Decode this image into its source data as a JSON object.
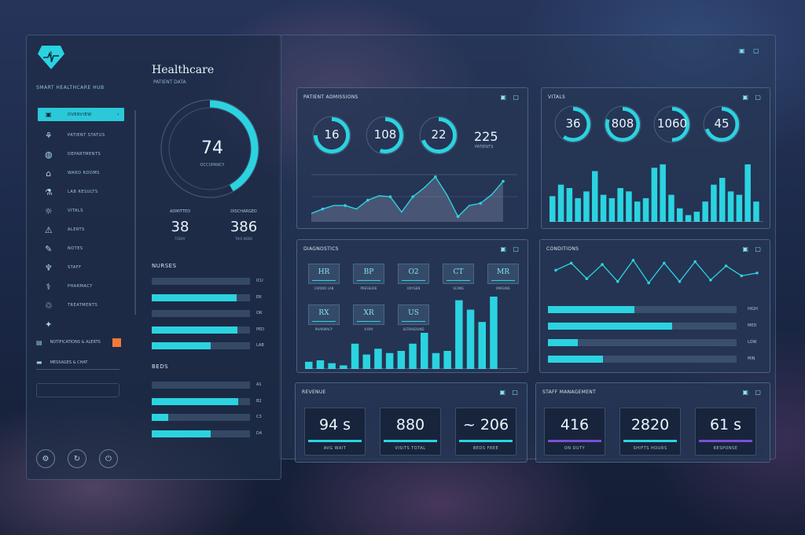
{
  "app": {
    "title": "Healthcare",
    "subtitle": "PATIENT DATA",
    "brand_sub": "SMART HEALTHCARE HUB",
    "top_icons": "▣ ▢"
  },
  "sidebar": {
    "nav": [
      {
        "icon": "▣",
        "icon_name": "grid-icon",
        "label": "OVERVIEW",
        "chevron": "›",
        "active": true
      },
      {
        "icon": "⚘",
        "icon_name": "flower-icon",
        "label": "PATIENT STATUS"
      },
      {
        "icon": "◍",
        "icon_name": "globe-icon",
        "label": "DEPARTMENTS"
      },
      {
        "icon": "⌂",
        "icon_name": "home-icon",
        "label": "WARD ROOMS"
      },
      {
        "icon": "⚗",
        "icon_name": "lab-icon",
        "label": "LAB RESULTS"
      },
      {
        "icon": "☼",
        "icon_name": "sun-icon",
        "label": "VITALS"
      },
      {
        "icon": "⚠",
        "icon_name": "alert-icon",
        "label": "ALERTS"
      },
      {
        "icon": "✎",
        "icon_name": "pen-icon",
        "label": "NOTES"
      },
      {
        "icon": "♆",
        "icon_name": "staff-icon",
        "label": "STAFF"
      },
      {
        "icon": "⚕",
        "icon_name": "medical-icon",
        "label": "PHARMACY"
      },
      {
        "icon": "♲",
        "icon_name": "cycle-icon",
        "label": "TREATMENTS"
      },
      {
        "icon": "✦",
        "icon_name": "star-icon",
        "label": ""
      }
    ],
    "notifications": {
      "icon": "▤",
      "label": "NOTIFICATIONS & ALERTS"
    },
    "messages": {
      "icon": "▬",
      "label": "MESSAGES & CHAT"
    },
    "footer_icons": [
      "⚙",
      "↻",
      "⏻"
    ]
  },
  "ring": {
    "value": "74",
    "sub": "OCCUPANCY",
    "fraction": 0.42
  },
  "pairs": [
    {
      "caption": "ADMITTED",
      "value": "38",
      "foot": "TODAY"
    },
    {
      "caption": "DISCHARGED",
      "value": "386",
      "foot": "THIS WEEK"
    }
  ],
  "bars_top": {
    "title": "NURSES",
    "rows": [
      {
        "fraction": 0.0,
        "label": "ICU"
      },
      {
        "fraction": 0.86,
        "label": "ER"
      },
      {
        "fraction": 0.0,
        "label": "OR"
      },
      {
        "fraction": 0.87,
        "label": "PED"
      },
      {
        "fraction": 0.6,
        "label": "LAB"
      }
    ]
  },
  "bars_bottom": {
    "title": "BEDS",
    "rows": [
      {
        "fraction": 0.0,
        "label": "A1"
      },
      {
        "fraction": 0.88,
        "label": "B2"
      },
      {
        "fraction": 0.17,
        "label": "C3"
      },
      {
        "fraction": 0.6,
        "label": "D4"
      }
    ]
  },
  "card1": {
    "title": "PATIENT ADMISSIONS",
    "icons": "▣ ▢",
    "donuts": [
      {
        "value": "16",
        "fraction": 0.75
      },
      {
        "value": "108",
        "fraction": 0.55
      },
      {
        "value": "22",
        "fraction": 0.7
      }
    ],
    "plain_value": "225",
    "plain_sub": "PATIENTS",
    "line": [
      0.12,
      0.22,
      0.3,
      0.3,
      0.22,
      0.42,
      0.52,
      0.5,
      0.15,
      0.5,
      0.7,
      0.95,
      0.55,
      0.05,
      0.3,
      0.35,
      0.55,
      0.85
    ]
  },
  "card2": {
    "title": "VITALS",
    "icons": "▣ ▢",
    "donuts": [
      {
        "value": "36",
        "fraction": 0.6
      },
      {
        "value": "808",
        "fraction": 0.8
      },
      {
        "value": "1060",
        "fraction": 0.5
      },
      {
        "value": "45",
        "fraction": 0.7
      }
    ],
    "bars": [
      0.38,
      0.55,
      0.5,
      0.35,
      0.45,
      0.75,
      0.4,
      0.35,
      0.5,
      0.45,
      0.3,
      0.35,
      0.8,
      0.85,
      0.4,
      0.2,
      0.1,
      0.15,
      0.3,
      0.55,
      0.65,
      0.45,
      0.4,
      0.85,
      0.3
    ]
  },
  "card3": {
    "title": "DIAGNOSTICS",
    "icons": "▣ ▢",
    "minis": [
      {
        "text": "HR",
        "caption": "CARDIO LAB"
      },
      {
        "text": "BP",
        "caption": "PRESSURE"
      },
      {
        "text": "O2",
        "caption": "OXYGEN"
      },
      {
        "text": "CT",
        "caption": "SCANS"
      },
      {
        "text": "MR",
        "caption": "IMAGING"
      },
      {
        "text": "RX",
        "caption": "PHARMACY"
      },
      {
        "text": "XR",
        "caption": "X-RAY"
      },
      {
        "text": "US",
        "caption": "ULTRASOUND"
      }
    ],
    "bars": [
      0.1,
      0.12,
      0.08,
      0.05,
      0.35,
      0.2,
      0.28,
      0.22,
      0.25,
      0.35,
      0.5,
      0.22,
      0.25,
      0.95,
      0.82,
      0.65,
      1.0
    ]
  },
  "card4": {
    "title": "CONDITIONS",
    "icons": "▣ ▢",
    "line": [
      0.6,
      0.85,
      0.3,
      0.8,
      0.2,
      0.95,
      0.15,
      0.85,
      0.2,
      0.9,
      0.25,
      0.75,
      0.4,
      0.5
    ],
    "rows": [
      {
        "fraction": 0.46,
        "label": "HIGH"
      },
      {
        "fraction": 0.66,
        "label": "MED"
      },
      {
        "fraction": 0.16,
        "label": "LOW"
      },
      {
        "fraction": 0.29,
        "label": "MIN"
      }
    ]
  },
  "card5": {
    "title": "REVENUE",
    "icons": "▣ ▢",
    "tiles": [
      {
        "value": "94",
        "suffix": "s",
        "foot": "AVG   WAIT",
        "accent": "#2bd3e0"
      },
      {
        "value": "880",
        "suffix": "",
        "foot": "VISITS   TOTAL",
        "accent": "#2bd3e0"
      },
      {
        "value": "206",
        "prefix": "~",
        "suffix": "",
        "foot": "BEDS   FREE",
        "accent": "#2bd3e0"
      }
    ]
  },
  "card6": {
    "title": "STAFF MANAGEMENT",
    "icons": "▣ ▢",
    "tiles": [
      {
        "value": "416",
        "suffix": "",
        "foot": "ON DUTY",
        "accent": "#7a4fd6"
      },
      {
        "value": "2820",
        "suffix": "",
        "foot": "SHIFTS   HOURS",
        "accent": "#2bd3e0"
      },
      {
        "value": "61",
        "suffix": "s",
        "foot": "RESPONSE",
        "accent": "#7a4fd6"
      }
    ]
  }
}
